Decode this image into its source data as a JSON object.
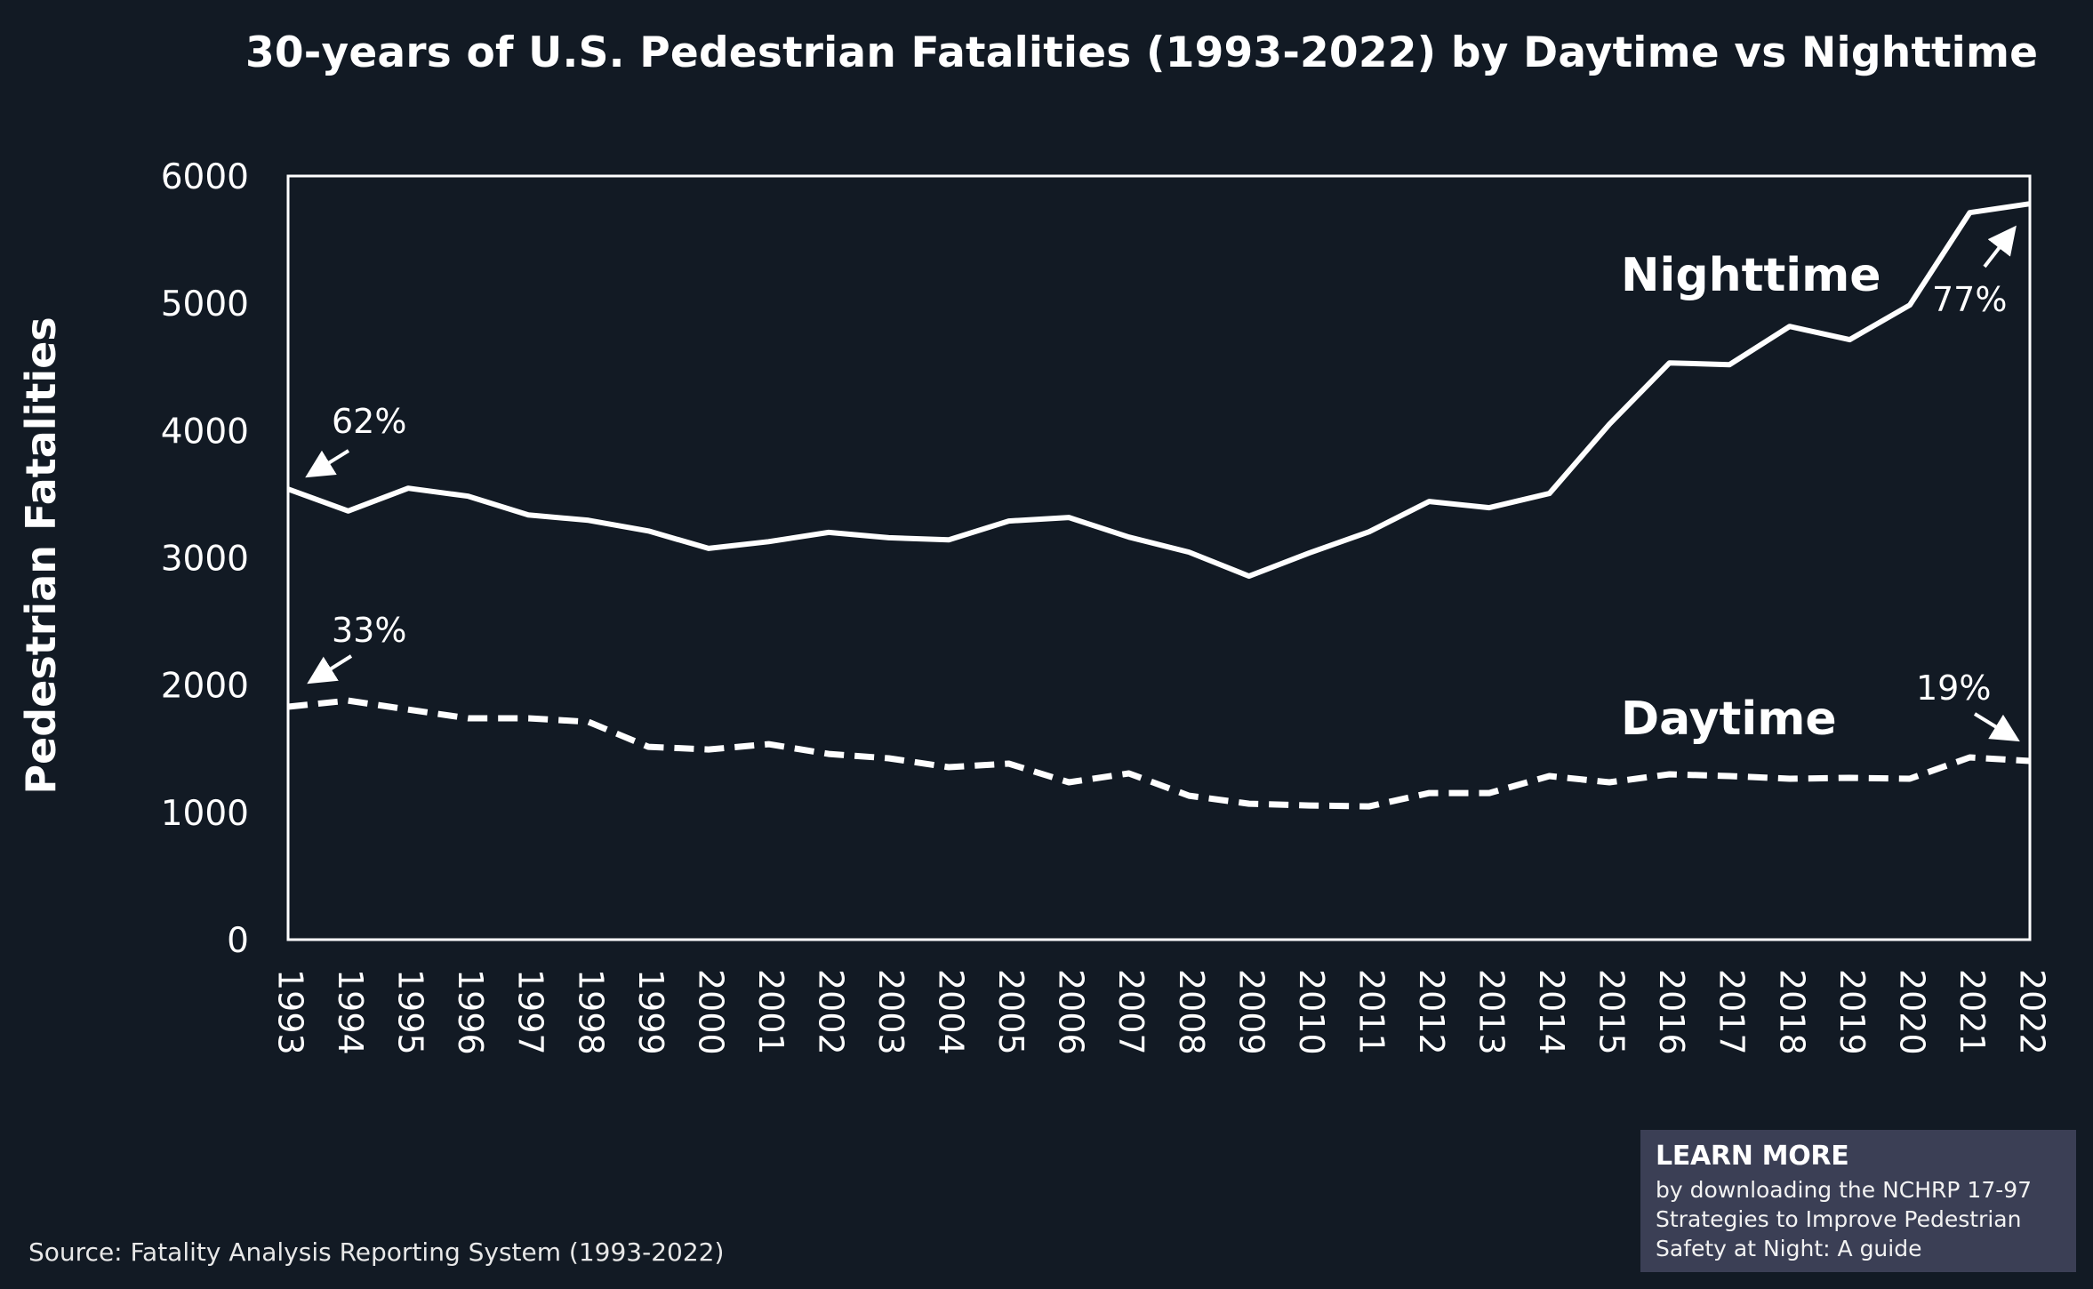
{
  "header": {
    "title": "30-years of U.S. Pedestrian Fatalities (1993-2022) by Daytime vs Nighttime"
  },
  "chart_data": {
    "type": "line",
    "title": "30-years of U.S. Pedestrian Fatalities (1993-2022) by Daytime vs Nighttime",
    "xlabel": "",
    "ylabel": "Pedestrian Fatalities",
    "ylim": [
      0,
      6000
    ],
    "yticks": [
      "0",
      "1000",
      "2000",
      "3000",
      "4000",
      "5000",
      "6000"
    ],
    "grid": false,
    "x": [
      "1993",
      "1994",
      "1995",
      "1996",
      "1997",
      "1998",
      "1999",
      "2000",
      "2001",
      "2002",
      "2003",
      "2004",
      "2005",
      "2006",
      "2007",
      "2008",
      "2009",
      "2010",
      "2011",
      "2012",
      "2013",
      "2014",
      "2015",
      "2016",
      "2017",
      "2018",
      "2019",
      "2020",
      "2021",
      "2022"
    ],
    "series": [
      {
        "name": "Nighttime",
        "style": "solid",
        "values": [
          3540,
          3368,
          3547,
          3484,
          3337,
          3295,
          3211,
          3074,
          3127,
          3200,
          3158,
          3142,
          3289,
          3317,
          3163,
          3045,
          2856,
          3038,
          3205,
          3443,
          3394,
          3506,
          4050,
          4532,
          4518,
          4818,
          4714,
          4986,
          5712,
          5782
        ]
      },
      {
        "name": "Daytime",
        "style": "dashed",
        "values": [
          1830,
          1878,
          1808,
          1739,
          1739,
          1711,
          1515,
          1494,
          1536,
          1459,
          1425,
          1355,
          1383,
          1236,
          1306,
          1131,
          1068,
          1054,
          1047,
          1152,
          1152,
          1285,
          1236,
          1299,
          1285,
          1264,
          1271,
          1264,
          1432,
          1404
        ]
      }
    ],
    "annotations": [
      {
        "text": "62%",
        "series": "Nighttime",
        "x": "1993"
      },
      {
        "text": "77%",
        "series": "Nighttime",
        "x": "2022"
      },
      {
        "text": "33%",
        "series": "Daytime",
        "x": "1993"
      },
      {
        "text": "19%",
        "series": "Daytime",
        "x": "2022"
      }
    ],
    "series_labels": [
      "Nighttime",
      "Daytime"
    ]
  },
  "footer": {
    "source": "Source: Fatality Analysis Reporting System (1993-2022)"
  },
  "learn_more": {
    "title": "LEARN MORE",
    "lines": [
      "by downloading the NCHRP 17-97",
      "Strategies to Improve Pedestrian",
      "Safety at Night: A guide"
    ]
  },
  "colors": {
    "background": "#121a24",
    "foreground": "#ffffff",
    "callout_box": "#3b3f55"
  }
}
